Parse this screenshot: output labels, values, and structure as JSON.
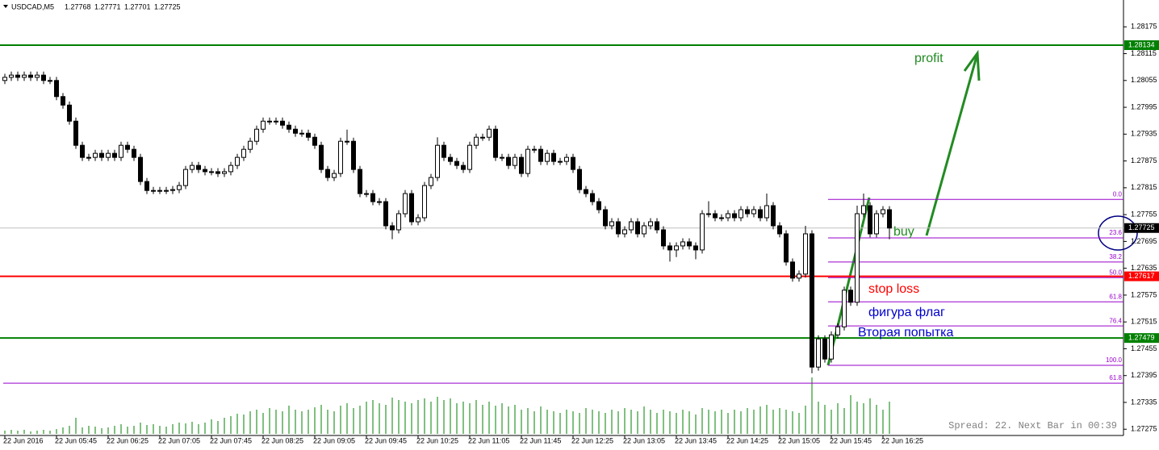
{
  "chart_data": {
    "type": "candlestick",
    "title": "USDCAD,M5",
    "header_values": [
      1.27768,
      1.27771,
      1.27701,
      1.27725
    ],
    "ylim": [
      1.27261,
      1.28235
    ],
    "yticks": [
      1.28175,
      1.28115,
      1.28055,
      1.27995,
      1.27935,
      1.27875,
      1.27815,
      1.27755,
      1.27695,
      1.27635,
      1.27575,
      1.27515,
      1.27455,
      1.27395,
      1.27335,
      1.27275
    ],
    "xticks": [
      {
        "value": 0,
        "label": "22 Jun 2016"
      },
      {
        "value": 8,
        "label": "22 Jun 05:45"
      },
      {
        "value": 16,
        "label": "22 Jun 06:25"
      },
      {
        "value": 24,
        "label": "22 Jun 07:05"
      },
      {
        "value": 32,
        "label": "22 Jun 07:45"
      },
      {
        "value": 40,
        "label": "22 Jun 08:25"
      },
      {
        "value": 48,
        "label": "22 Jun 09:05"
      },
      {
        "value": 56,
        "label": "22 Jun 09:45"
      },
      {
        "value": 64,
        "label": "22 Jun 10:25"
      },
      {
        "value": 72,
        "label": "22 Jun 11:05"
      },
      {
        "value": 80,
        "label": "22 Jun 11:45"
      },
      {
        "value": 88,
        "label": "22 Jun 12:25"
      },
      {
        "value": 96,
        "label": "22 Jun 13:05"
      },
      {
        "value": 104,
        "label": "22 Jun 13:45"
      },
      {
        "value": 112,
        "label": "22 Jun 14:25"
      },
      {
        "value": 120,
        "label": "22 Jun 15:05"
      },
      {
        "value": 128,
        "label": "22 Jun 15:45"
      },
      {
        "value": 136,
        "label": "22 Jun 16:25"
      }
    ],
    "open": [
      1.28055,
      1.28062,
      1.28067,
      1.28062,
      1.28067,
      1.28062,
      1.28067,
      1.28055,
      1.28055,
      1.28019,
      1.28,
      1.27964,
      1.2791,
      1.27883,
      1.27883,
      1.27892,
      1.27883,
      1.27892,
      1.27883,
      1.2791,
      1.27901,
      1.27883,
      1.27829,
      1.27809,
      1.27809,
      1.27809,
      1.27809,
      1.27811,
      1.2782,
      1.27856,
      1.27865,
      1.27856,
      1.27851,
      1.27851,
      1.27847,
      1.27851,
      1.27865,
      1.27883,
      1.27901,
      1.27919,
      1.27946,
      1.27964,
      1.27964,
      1.27964,
      1.27955,
      1.27946,
      1.27937,
      1.27937,
      1.27928,
      1.2791,
      1.27856,
      1.27838,
      1.27847,
      1.27919,
      1.27919,
      1.27856,
      1.27802,
      1.27802,
      1.27784,
      1.27784,
      1.2773,
      1.27721,
      1.27757,
      1.27802,
      1.27739,
      1.27748,
      1.2782,
      1.27838,
      1.2791,
      1.27883,
      1.27874,
      1.27865,
      1.27856,
      1.2791,
      1.27928,
      1.27928,
      1.27946,
      1.27883,
      1.27883,
      1.27865,
      1.27883,
      1.27847,
      1.27901,
      1.27901,
      1.27874,
      1.27892,
      1.27874,
      1.27874,
      1.27883,
      1.27856,
      1.27811,
      1.27802,
      1.27784,
      1.27766,
      1.2773,
      1.27739,
      1.27712,
      1.27721,
      1.27739,
      1.27712,
      1.2773,
      1.27739,
      1.27721,
      1.27685,
      1.27676,
      1.27685,
      1.27694,
      1.27685,
      1.27676,
      1.27757,
      1.27757,
      1.27748,
      1.27748,
      1.27757,
      1.27748,
      1.27766,
      1.27757,
      1.27766,
      1.27748,
      1.27775,
      1.2773,
      1.27712,
      1.27649,
      1.27613,
      1.27622,
      1.27712,
      1.27414,
      1.27477,
      1.27432,
      1.27486,
      1.27504,
      1.27586,
      1.27559,
      1.27757,
      1.27775,
      1.27712,
      1.27757,
      1.27766
    ],
    "high": [
      1.2807,
      1.28075,
      1.28075,
      1.28075,
      1.28075,
      1.28075,
      1.28075,
      1.28063,
      1.28063,
      1.28027,
      1.28008,
      1.27972,
      1.27918,
      1.27891,
      1.279,
      1.279,
      1.279,
      1.279,
      1.27918,
      1.27918,
      1.27909,
      1.27891,
      1.27837,
      1.27817,
      1.27817,
      1.27817,
      1.27819,
      1.27828,
      1.27864,
      1.27873,
      1.27873,
      1.27864,
      1.27859,
      1.27859,
      1.27859,
      1.27873,
      1.27891,
      1.27909,
      1.27927,
      1.27954,
      1.27972,
      1.27972,
      1.27972,
      1.27972,
      1.27963,
      1.27954,
      1.27945,
      1.27945,
      1.27936,
      1.27918,
      1.27864,
      1.27855,
      1.27927,
      1.27945,
      1.27927,
      1.27864,
      1.2781,
      1.2781,
      1.27792,
      1.27792,
      1.27738,
      1.27765,
      1.2781,
      1.2781,
      1.27756,
      1.27828,
      1.27846,
      1.27928,
      1.27918,
      1.27891,
      1.27882,
      1.27873,
      1.27918,
      1.27936,
      1.27936,
      1.27954,
      1.27954,
      1.27891,
      1.27891,
      1.27891,
      1.27891,
      1.27909,
      1.27909,
      1.27909,
      1.279,
      1.279,
      1.27882,
      1.27891,
      1.27891,
      1.27864,
      1.27819,
      1.2781,
      1.27792,
      1.27774,
      1.27747,
      1.27747,
      1.27729,
      1.27747,
      1.27747,
      1.27738,
      1.27747,
      1.27747,
      1.27729,
      1.27693,
      1.27693,
      1.27702,
      1.27702,
      1.27693,
      1.27765,
      1.27785,
      1.27765,
      1.27756,
      1.27765,
      1.27765,
      1.27774,
      1.27774,
      1.27774,
      1.27774,
      1.27802,
      1.27783,
      1.27738,
      1.2772,
      1.27657,
      1.2763,
      1.2773,
      1.2772,
      1.27485,
      1.27485,
      1.27494,
      1.27512,
      1.27594,
      1.27594,
      1.27775,
      1.27802,
      1.27783,
      1.27765,
      1.27774,
      1.27774
    ],
    "low": [
      1.28047,
      1.28054,
      1.28054,
      1.28054,
      1.28054,
      1.28054,
      1.28047,
      1.28047,
      1.28011,
      1.27992,
      1.27956,
      1.27902,
      1.27875,
      1.27875,
      1.27875,
      1.27875,
      1.27875,
      1.27875,
      1.27875,
      1.27893,
      1.27875,
      1.27821,
      1.27801,
      1.27801,
      1.27801,
      1.27801,
      1.27801,
      1.27803,
      1.27812,
      1.27848,
      1.27848,
      1.27843,
      1.27843,
      1.27839,
      1.27839,
      1.27843,
      1.27857,
      1.27875,
      1.27893,
      1.27911,
      1.27938,
      1.27956,
      1.27956,
      1.27947,
      1.27938,
      1.27929,
      1.27929,
      1.2792,
      1.27902,
      1.27848,
      1.2783,
      1.2783,
      1.27839,
      1.27911,
      1.27848,
      1.27794,
      1.27794,
      1.27776,
      1.27776,
      1.27722,
      1.277,
      1.27713,
      1.27749,
      1.27731,
      1.27731,
      1.2774,
      1.27812,
      1.2783,
      1.27875,
      1.27866,
      1.27857,
      1.27848,
      1.27848,
      1.27902,
      1.2792,
      1.2792,
      1.27875,
      1.27875,
      1.27857,
      1.27857,
      1.27839,
      1.27839,
      1.27893,
      1.27866,
      1.27866,
      1.27866,
      1.27866,
      1.27866,
      1.27848,
      1.27803,
      1.27794,
      1.27776,
      1.27758,
      1.27722,
      1.27722,
      1.27704,
      1.27704,
      1.27713,
      1.27704,
      1.27704,
      1.27722,
      1.27713,
      1.27677,
      1.2765,
      1.2766,
      1.27677,
      1.27677,
      1.27655,
      1.27668,
      1.27749,
      1.2774,
      1.2774,
      1.2774,
      1.2774,
      1.2774,
      1.27749,
      1.27749,
      1.2774,
      1.2774,
      1.27722,
      1.27704,
      1.27641,
      1.27605,
      1.27605,
      1.27614,
      1.274,
      1.27406,
      1.27424,
      1.27424,
      1.27478,
      1.27496,
      1.27551,
      1.27551,
      1.27749,
      1.27704,
      1.27704,
      1.27749,
      1.277
    ],
    "close": [
      1.28062,
      1.28067,
      1.28062,
      1.28067,
      1.28062,
      1.28067,
      1.28055,
      1.28055,
      1.28019,
      1.28,
      1.27964,
      1.2791,
      1.27883,
      1.27883,
      1.27892,
      1.27883,
      1.27892,
      1.27883,
      1.2791,
      1.27901,
      1.27883,
      1.27829,
      1.27809,
      1.27809,
      1.27809,
      1.27809,
      1.27811,
      1.2782,
      1.27856,
      1.27865,
      1.27856,
      1.27851,
      1.27851,
      1.27847,
      1.27851,
      1.27865,
      1.27883,
      1.27901,
      1.27919,
      1.27946,
      1.27964,
      1.27964,
      1.27964,
      1.27955,
      1.27946,
      1.27937,
      1.27937,
      1.27928,
      1.2791,
      1.27856,
      1.27838,
      1.27847,
      1.27919,
      1.27919,
      1.27856,
      1.27802,
      1.27802,
      1.27784,
      1.27784,
      1.2773,
      1.27721,
      1.27757,
      1.27802,
      1.27739,
      1.27748,
      1.2782,
      1.27838,
      1.2791,
      1.27883,
      1.27874,
      1.27865,
      1.27856,
      1.2791,
      1.27928,
      1.27928,
      1.27946,
      1.27883,
      1.27883,
      1.27865,
      1.27883,
      1.27847,
      1.27901,
      1.27901,
      1.27874,
      1.27892,
      1.27874,
      1.27874,
      1.27883,
      1.27856,
      1.27811,
      1.27802,
      1.27784,
      1.27766,
      1.2773,
      1.27739,
      1.27712,
      1.27721,
      1.27739,
      1.27712,
      1.2773,
      1.27739,
      1.27721,
      1.27685,
      1.27676,
      1.27685,
      1.27694,
      1.27685,
      1.27676,
      1.27757,
      1.27757,
      1.27748,
      1.27748,
      1.27757,
      1.27748,
      1.27766,
      1.27757,
      1.27766,
      1.27748,
      1.27775,
      1.2773,
      1.27712,
      1.27649,
      1.27613,
      1.27622,
      1.27712,
      1.27414,
      1.27477,
      1.27432,
      1.27486,
      1.27504,
      1.27586,
      1.27559,
      1.27757,
      1.27775,
      1.27712,
      1.27757,
      1.27766,
      1.27725
    ],
    "volume": [
      4,
      5,
      4,
      5,
      3,
      4,
      5,
      4,
      6,
      8,
      10,
      20,
      8,
      10,
      9,
      7,
      8,
      10,
      12,
      9,
      10,
      14,
      11,
      12,
      10,
      9,
      12,
      14,
      13,
      15,
      12,
      14,
      18,
      16,
      20,
      22,
      25,
      24,
      28,
      30,
      26,
      32,
      30,
      28,
      35,
      30,
      28,
      30,
      33,
      36,
      30,
      28,
      35,
      38,
      32,
      35,
      40,
      42,
      38,
      36,
      45,
      42,
      40,
      38,
      42,
      44,
      40,
      46,
      42,
      44,
      38,
      40,
      38,
      42,
      36,
      40,
      35,
      38,
      34,
      36,
      30,
      32,
      28,
      34,
      30,
      28,
      26,
      30,
      28,
      26,
      32,
      30,
      28,
      26,
      30,
      28,
      32,
      30,
      28,
      34,
      30,
      26,
      30,
      28,
      26,
      30,
      28,
      24,
      32,
      30,
      28,
      30,
      26,
      30,
      28,
      32,
      30,
      34,
      36,
      30,
      32,
      30,
      28,
      26,
      35,
      70,
      40,
      36,
      30,
      38,
      32,
      48,
      40,
      38,
      44,
      36,
      30,
      40
    ],
    "hlines": [
      {
        "value": 1.28134,
        "color": "#008000"
      },
      {
        "value": 1.27617,
        "color": "#ff0000"
      },
      {
        "value": 1.27479,
        "color": "#008000"
      }
    ],
    "current_price": 1.27725,
    "fibo": {
      "color": "#9900cc",
      "labels": [
        "0.0",
        "23.6",
        "38.2",
        "50.0",
        "61.8",
        "76.4",
        "100.0"
      ],
      "prices": [
        1.27789,
        1.27703,
        1.27649,
        1.27614,
        1.2756,
        1.27506,
        1.27418
      ],
      "extension": {
        "label": "61.8",
        "price": 1.27378
      }
    },
    "annotations": [
      {
        "text": "profit",
        "color": "#228b22"
      },
      {
        "text": "buy",
        "color": "#228b22"
      },
      {
        "text": "stop loss",
        "color": "#ff0000"
      },
      {
        "text": "фигура флаг",
        "color": "#0000cc"
      },
      {
        "text": "Вторая попытка",
        "color": "#0000cc"
      }
    ],
    "status": "Spread: 22. Next Bar in 00:39"
  }
}
